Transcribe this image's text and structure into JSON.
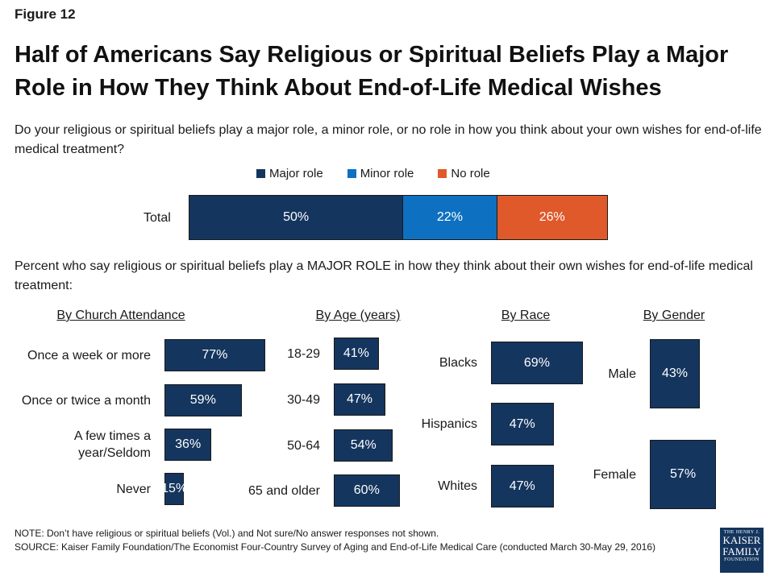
{
  "figure_label": "Figure 12",
  "title": "Half of Americans Say Religious or Spiritual Beliefs Play a Major Role in How They Think About End-of-Life Medical Wishes",
  "question": "Do your religious or spiritual beliefs play a major role, a minor role, or no role in how you think about your own wishes for end-of-life medical treatment?",
  "subquestion": "Percent who say religious or spiritual beliefs play a MAJOR ROLE in how they think about their own wishes for end-of-life medical treatment:",
  "note": "NOTE: Don’t have religious or spiritual beliefs (Vol.) and Not sure/No answer responses not shown.",
  "source": "SOURCE: Kaiser Family Foundation/The Economist Four-Country Survey of Aging and End-of-Life Medical Care (conducted March 30-May 29, 2016)",
  "logo": {
    "line1": "THE HENRY J.",
    "line2": "KAISER",
    "line3": "FAMILY",
    "line4": "FOUNDATION"
  },
  "colors": {
    "major": "#14355e",
    "minor": "#0e70c0",
    "none": "#e0592a"
  },
  "chart_data": [
    {
      "type": "bar",
      "orientation": "horizontal",
      "stacked": true,
      "categories": [
        "Total"
      ],
      "series": [
        {
          "name": "Major role",
          "values": [
            50
          ],
          "labels": [
            "50%"
          ]
        },
        {
          "name": "Minor role",
          "values": [
            22
          ],
          "labels": [
            "22%"
          ]
        },
        {
          "name": "No role",
          "values": [
            26
          ],
          "labels": [
            "26%"
          ]
        }
      ],
      "legend": "top"
    },
    {
      "type": "bar",
      "orientation": "horizontal",
      "title": "By Church Attendance",
      "categories": [
        "Once a week or more",
        "Once or twice a month",
        "A few times a year/Seldom",
        "Never"
      ],
      "values": [
        77,
        59,
        36,
        15
      ],
      "labels": [
        "77%",
        "59%",
        "36%",
        "15%"
      ]
    },
    {
      "type": "bar",
      "orientation": "horizontal",
      "title": "By Age (years)",
      "categories": [
        "18-29",
        "30-49",
        "50-64",
        "65 and older"
      ],
      "values": [
        41,
        47,
        54,
        60
      ],
      "labels": [
        "41%",
        "47%",
        "54%",
        "60%"
      ]
    },
    {
      "type": "bar",
      "orientation": "horizontal",
      "title": "By Race",
      "categories": [
        "Blacks",
        "Hispanics",
        "Whites"
      ],
      "values": [
        69,
        47,
        47
      ],
      "labels": [
        "69%",
        "47%",
        "47%"
      ]
    },
    {
      "type": "bar",
      "orientation": "horizontal",
      "title": "By Gender",
      "categories": [
        "Male",
        "Female"
      ],
      "values": [
        43,
        57
      ],
      "labels": [
        "43%",
        "57%"
      ]
    }
  ]
}
